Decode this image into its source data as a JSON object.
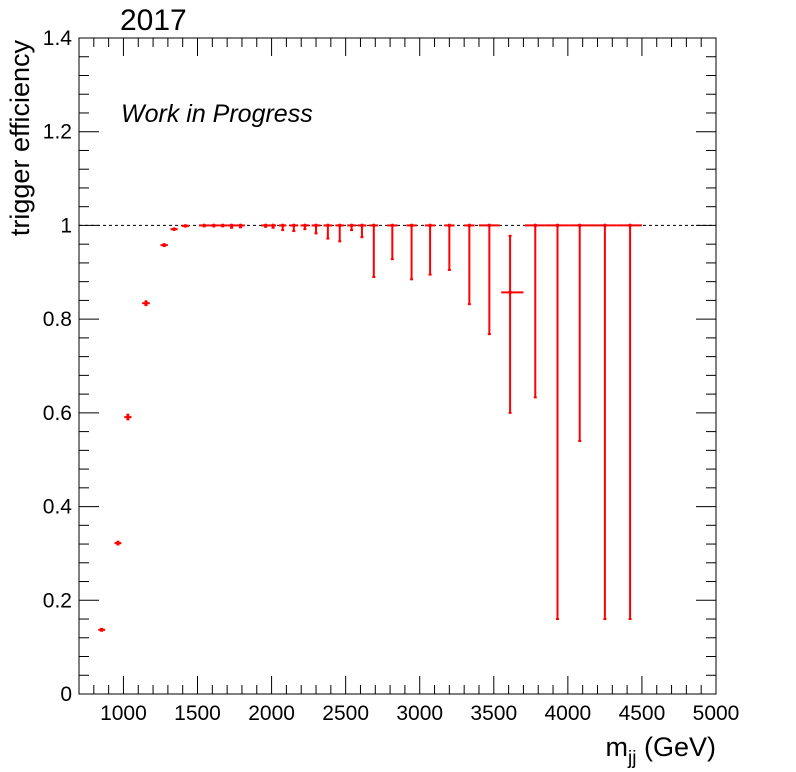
{
  "chart_data": {
    "type": "scatter",
    "title": "2017",
    "annotation": "Work in Progress",
    "xlabel_base": "m",
    "xlabel_sub": "jj",
    "xlabel_unit": "(GeV)",
    "ylabel": "trigger efficiency",
    "xlim": [
      700,
      5000
    ],
    "ylim": [
      0,
      1.4
    ],
    "x_ticks": [
      1000,
      1500,
      2000,
      2500,
      3000,
      3500,
      4000,
      4500,
      5000
    ],
    "y_ticks": [
      0,
      0.2,
      0.4,
      0.6,
      0.8,
      1,
      1.2,
      1.4
    ],
    "y_tick_labels": [
      "0",
      "0.2",
      "0.4",
      "0.6",
      "0.8",
      "1",
      "1.2",
      "1.4"
    ],
    "reference_line": 1.0,
    "marker_color": "#ff0000",
    "series": [
      {
        "points": [
          {
            "x": 853,
            "xlo": 830,
            "xhi": 876,
            "y": 0.137,
            "ylo": 0.135,
            "yhi": 0.139
          },
          {
            "x": 963,
            "xlo": 940,
            "xhi": 986,
            "y": 0.322,
            "ylo": 0.319,
            "yhi": 0.325
          },
          {
            "x": 1030,
            "xlo": 1006,
            "xhi": 1054,
            "y": 0.591,
            "ylo": 0.586,
            "yhi": 0.596
          },
          {
            "x": 1152,
            "xlo": 1126,
            "xhi": 1178,
            "y": 0.834,
            "ylo": 0.83,
            "yhi": 0.838
          },
          {
            "x": 1275,
            "xlo": 1250,
            "xhi": 1300,
            "y": 0.958,
            "ylo": 0.956,
            "yhi": 0.96
          },
          {
            "x": 1342,
            "xlo": 1318,
            "xhi": 1366,
            "y": 0.992,
            "ylo": 0.991,
            "yhi": 0.993
          },
          {
            "x": 1418,
            "xlo": 1392,
            "xhi": 1444,
            "y": 0.999,
            "ylo": 0.998,
            "yhi": 1.0
          },
          {
            "x": 1545,
            "xlo": 1510,
            "xhi": 1580,
            "y": 1.0,
            "ylo": 0.998,
            "yhi": 1.0
          },
          {
            "x": 1610,
            "xlo": 1580,
            "xhi": 1640,
            "y": 1.0,
            "ylo": 0.998,
            "yhi": 1.0
          },
          {
            "x": 1670,
            "xlo": 1640,
            "xhi": 1700,
            "y": 1.0,
            "ylo": 0.998,
            "yhi": 1.0
          },
          {
            "x": 1730,
            "xlo": 1700,
            "xhi": 1760,
            "y": 1.0,
            "ylo": 0.995,
            "yhi": 1.0
          },
          {
            "x": 1790,
            "xlo": 1760,
            "xhi": 1820,
            "y": 1.0,
            "ylo": 0.996,
            "yhi": 1.0
          },
          {
            "x": 1960,
            "xlo": 1930,
            "xhi": 1990,
            "y": 1.0,
            "ylo": 0.997,
            "yhi": 1.0
          },
          {
            "x": 2010,
            "xlo": 1990,
            "xhi": 2030,
            "y": 1.0,
            "ylo": 0.995,
            "yhi": 1.0
          },
          {
            "x": 2075,
            "xlo": 2050,
            "xhi": 2100,
            "y": 1.0,
            "ylo": 0.99,
            "yhi": 1.0
          },
          {
            "x": 2150,
            "xlo": 2120,
            "xhi": 2180,
            "y": 1.0,
            "ylo": 0.988,
            "yhi": 1.0
          },
          {
            "x": 2225,
            "xlo": 2195,
            "xhi": 2255,
            "y": 1.0,
            "ylo": 0.992,
            "yhi": 1.0
          },
          {
            "x": 2300,
            "xlo": 2270,
            "xhi": 2330,
            "y": 1.0,
            "ylo": 0.983,
            "yhi": 1.0
          },
          {
            "x": 2380,
            "xlo": 2350,
            "xhi": 2410,
            "y": 1.0,
            "ylo": 0.972,
            "yhi": 1.0
          },
          {
            "x": 2460,
            "xlo": 2430,
            "xhi": 2490,
            "y": 1.0,
            "ylo": 0.966,
            "yhi": 1.0
          },
          {
            "x": 2540,
            "xlo": 2510,
            "xhi": 2570,
            "y": 1.0,
            "ylo": 0.99,
            "yhi": 1.0
          },
          {
            "x": 2610,
            "xlo": 2580,
            "xhi": 2640,
            "y": 1.0,
            "ylo": 0.975,
            "yhi": 1.0
          },
          {
            "x": 2690,
            "xlo": 2660,
            "xhi": 2720,
            "y": 1.0,
            "ylo": 0.89,
            "yhi": 1.0
          },
          {
            "x": 2815,
            "xlo": 2780,
            "xhi": 2850,
            "y": 1.0,
            "ylo": 0.928,
            "yhi": 1.0
          },
          {
            "x": 2945,
            "xlo": 2910,
            "xhi": 2980,
            "y": 1.0,
            "ylo": 0.885,
            "yhi": 1.0
          },
          {
            "x": 3070,
            "xlo": 3035,
            "xhi": 3105,
            "y": 1.0,
            "ylo": 0.895,
            "yhi": 1.0
          },
          {
            "x": 3200,
            "xlo": 3165,
            "xhi": 3235,
            "y": 1.0,
            "ylo": 0.905,
            "yhi": 1.0
          },
          {
            "x": 3335,
            "xlo": 3300,
            "xhi": 3370,
            "y": 1.0,
            "ylo": 0.832,
            "yhi": 1.0
          },
          {
            "x": 3470,
            "xlo": 3400,
            "xhi": 3540,
            "y": 1.0,
            "ylo": 0.768,
            "yhi": 1.0
          },
          {
            "x": 3610,
            "xlo": 3550,
            "xhi": 3700,
            "y": 0.857,
            "ylo": 0.6,
            "yhi": 0.978
          },
          {
            "x": 3780,
            "xlo": 3710,
            "xhi": 3850,
            "y": 1.0,
            "ylo": 0.633,
            "yhi": 1.0
          },
          {
            "x": 3930,
            "xlo": 3850,
            "xhi": 4010,
            "y": 1.0,
            "ylo": 0.16,
            "yhi": 1.0
          },
          {
            "x": 4080,
            "xlo": 4010,
            "xhi": 4170,
            "y": 1.0,
            "ylo": 0.54,
            "yhi": 1.0
          },
          {
            "x": 4250,
            "xlo": 4170,
            "xhi": 4330,
            "y": 1.0,
            "ylo": 0.16,
            "yhi": 1.0
          },
          {
            "x": 4420,
            "xlo": 4330,
            "xhi": 4500,
            "y": 1.0,
            "ylo": 0.16,
            "yhi": 1.0
          }
        ]
      }
    ]
  }
}
